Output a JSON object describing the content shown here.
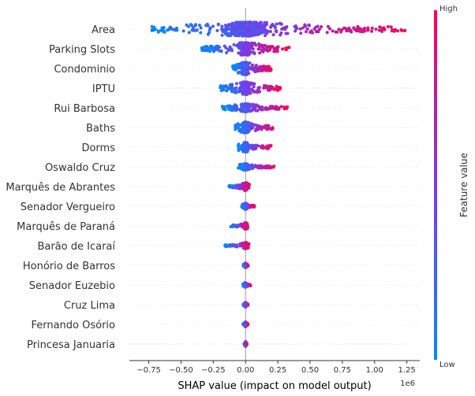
{
  "chart_data": {
    "type": "scatter",
    "variant": "shap-beeswarm-summary",
    "xlabel": "SHAP value (impact on model output)",
    "x_multiplier_label": "1e6",
    "x_scale": 1000000,
    "xlim": [
      -0.9,
      1.35
    ],
    "x_ticks": [
      -0.75,
      -0.5,
      -0.25,
      0.0,
      0.25,
      0.5,
      0.75,
      1.0,
      1.25
    ],
    "x_tick_labels": [
      "−0.75",
      "−0.50",
      "−0.25",
      "0.00",
      "0.25",
      "0.50",
      "0.75",
      "1.00",
      "1.25"
    ],
    "zero_line": true,
    "colorbar": {
      "title": "Feature value",
      "high_label": "High",
      "low_label": "Low",
      "low_color": "#008bfb",
      "mid_color": "#7b3ae8",
      "high_color": "#ff0052"
    },
    "features": [
      {
        "name": "Area",
        "min": -0.76,
        "max": 1.24,
        "count": 520,
        "spread": 9
      },
      {
        "name": "Parking Slots",
        "min": -0.34,
        "max": 0.34,
        "count": 300,
        "spread": 8
      },
      {
        "name": "Condominio",
        "min": -0.1,
        "max": 0.2,
        "count": 300,
        "spread": 8
      },
      {
        "name": "IPTU",
        "min": -0.2,
        "max": 0.27,
        "count": 300,
        "spread": 8
      },
      {
        "name": "Rui Barbosa",
        "min": -0.18,
        "max": 0.33,
        "count": 260,
        "spread": 5
      },
      {
        "name": "Baths",
        "min": -0.08,
        "max": 0.22,
        "count": 240,
        "spread": 7
      },
      {
        "name": "Dorms",
        "min": -0.06,
        "max": 0.2,
        "count": 200,
        "spread": 6
      },
      {
        "name": "Oswaldo Cruz",
        "min": -0.06,
        "max": 0.22,
        "count": 180,
        "spread": 4
      },
      {
        "name": "Marquês de Abrantes",
        "min": -0.13,
        "max": 0.03,
        "count": 140,
        "spread": 5
      },
      {
        "name": "Senador Vergueiro",
        "min": -0.03,
        "max": 0.07,
        "count": 140,
        "spread": 4
      },
      {
        "name": "Marquês de Paraná",
        "min": -0.12,
        "max": 0.02,
        "count": 120,
        "spread": 4
      },
      {
        "name": "Barão de Icaraí",
        "min": -0.16,
        "max": 0.03,
        "count": 120,
        "spread": 4
      },
      {
        "name": "Honório de Barros",
        "min": -0.02,
        "max": 0.02,
        "count": 100,
        "spread": 3
      },
      {
        "name": "Senador Euzebio",
        "min": -0.02,
        "max": 0.04,
        "count": 100,
        "spread": 3
      },
      {
        "name": "Cruz Lima",
        "min": -0.02,
        "max": 0.02,
        "count": 90,
        "spread": 3
      },
      {
        "name": "Fernando Osório",
        "min": -0.02,
        "max": 0.02,
        "count": 90,
        "spread": 3
      },
      {
        "name": "Princesa Januaria",
        "min": -0.01,
        "max": 0.01,
        "count": 90,
        "spread": 3
      }
    ]
  }
}
